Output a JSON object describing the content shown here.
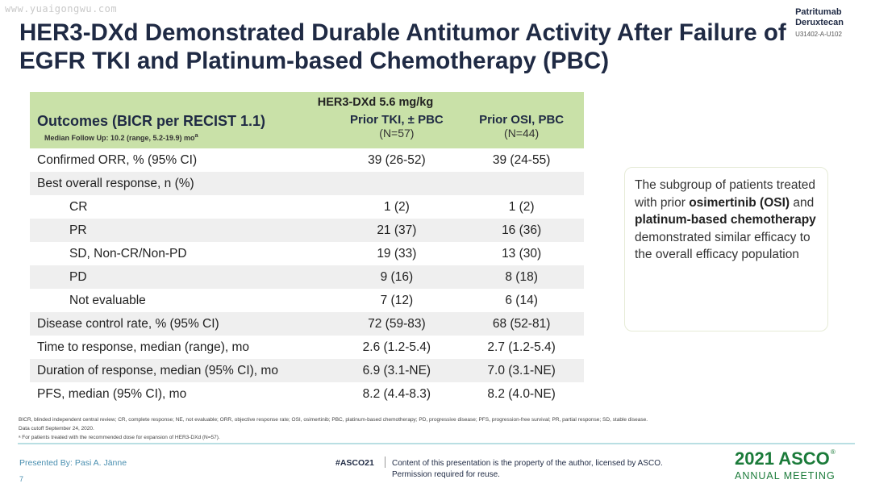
{
  "watermark": "www.yuaigongwu.com",
  "brand": {
    "line1": "Patritumab",
    "line2": "Deruxtecan",
    "code": "U31402-A-U102"
  },
  "title": "HER3-DXd Demonstrated Durable Antitumor Activity After Failure of EGFR TKI and Platinum-based Chemotherapy (PBC)",
  "table": {
    "group_header": "HER3-DXd 5.6 mg/kg",
    "outcome_header": "Outcomes (BICR per RECIST 1.1)",
    "outcome_sub": "Median Follow Up: 10.2 (range, 5.2-19.9) mo",
    "outcome_sub_sup": "a",
    "col1": {
      "title": "Prior TKI, ± PBC",
      "n": "(N=57)"
    },
    "col2": {
      "title": "Prior OSI, PBC",
      "n": "(N=44)"
    },
    "rows": [
      {
        "label": "Confirmed ORR, % (95% CI)",
        "v1": "39 (26-52)",
        "v2": "39 (24-55)"
      },
      {
        "label": "Best overall response, n (%)",
        "v1": "",
        "v2": ""
      },
      {
        "label": "CR",
        "v1": "1 (2)",
        "v2": "1 (2)"
      },
      {
        "label": "PR",
        "v1": "21 (37)",
        "v2": "16 (36)"
      },
      {
        "label": "SD, Non-CR/Non-PD",
        "v1": "19 (33)",
        "v2": "13 (30)"
      },
      {
        "label": "PD",
        "v1": "9 (16)",
        "v2": "8 (18)"
      },
      {
        "label": "Not evaluable",
        "v1": "7 (12)",
        "v2": "6 (14)"
      },
      {
        "label": "Disease control rate, % (95% CI)",
        "v1": "72 (59-83)",
        "v2": "68 (52-81)"
      },
      {
        "label": "Time to response, median (range), mo",
        "v1": "2.6 (1.2-5.4)",
        "v2": "2.7 (1.2-5.4)"
      },
      {
        "label": "Duration of response, median (95% CI), mo",
        "v1": "6.9 (3.1-NE)",
        "v2": "7.0 (3.1-NE)"
      },
      {
        "label": "PFS, median (95% CI), mo",
        "v1": "8.2 (4.4-8.3)",
        "v2": "8.2 (4.0-NE)"
      }
    ]
  },
  "callout": {
    "t1": "The subgroup of patients treated with prior ",
    "b1": "osimertinib (OSI)",
    "t2": " and ",
    "b2": "platinum-based chemotherapy",
    "t3": " demonstrated similar efficacy to the overall efficacy population"
  },
  "footnotes": {
    "abbrev": "BICR, blinded independent central review; CR, complete response; NE, not evaluable; ORR, objective response rate; OSI, osimertinib; PBC, platinum-based chemotherapy; PD, progressive disease; PFS, progression-free survival; PR, partial response; SD, stable disease.",
    "cutoff": "Data cutoff September 24, 2020.",
    "note_a": "ᵃ For patients treated with the recommended dose for expansion of HER3-DXd (N=57)."
  },
  "footer": {
    "presenter": "Presented By: Pasi A. Jänne",
    "page": "7",
    "hashtag": "#ASCO21",
    "notice_1": "Content of this presentation is the property of the author, licensed by ASCO.",
    "notice_2": "Permission required for reuse.",
    "asco_year": "2021 ASCO",
    "asco_reg": "®",
    "asco_meeting": "ANNUAL MEETING"
  }
}
